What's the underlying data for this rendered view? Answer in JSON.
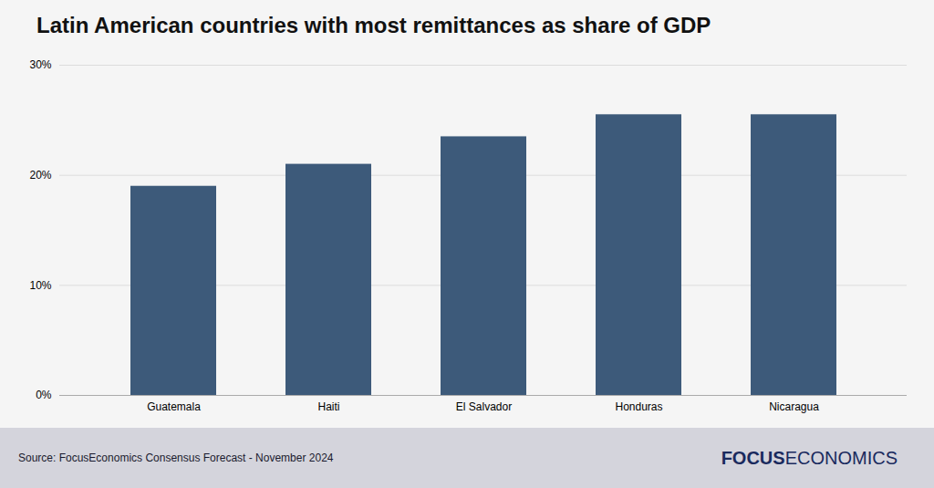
{
  "chart_data": {
    "type": "bar",
    "title": "Latin American countries with most remittances as share of GDP",
    "categories": [
      "Guatemala",
      "Haiti",
      "El Salvador",
      "Honduras",
      "Nicaragua"
    ],
    "values": [
      19.0,
      21.0,
      23.5,
      25.5,
      25.5
    ],
    "color": "#3d5a7a",
    "ylim": [
      0,
      30
    ],
    "yticks": [
      {
        "value": 0,
        "label": "0%"
      },
      {
        "value": 10,
        "label": "10%"
      },
      {
        "value": 20,
        "label": "20%"
      },
      {
        "value": 30,
        "label": "30%"
      }
    ],
    "grid": true,
    "caption": "Source: FocusEconomics Consensus Forecast - November 2024",
    "annotations": [
      "FOCUS",
      "ECONOMICS"
    ]
  }
}
